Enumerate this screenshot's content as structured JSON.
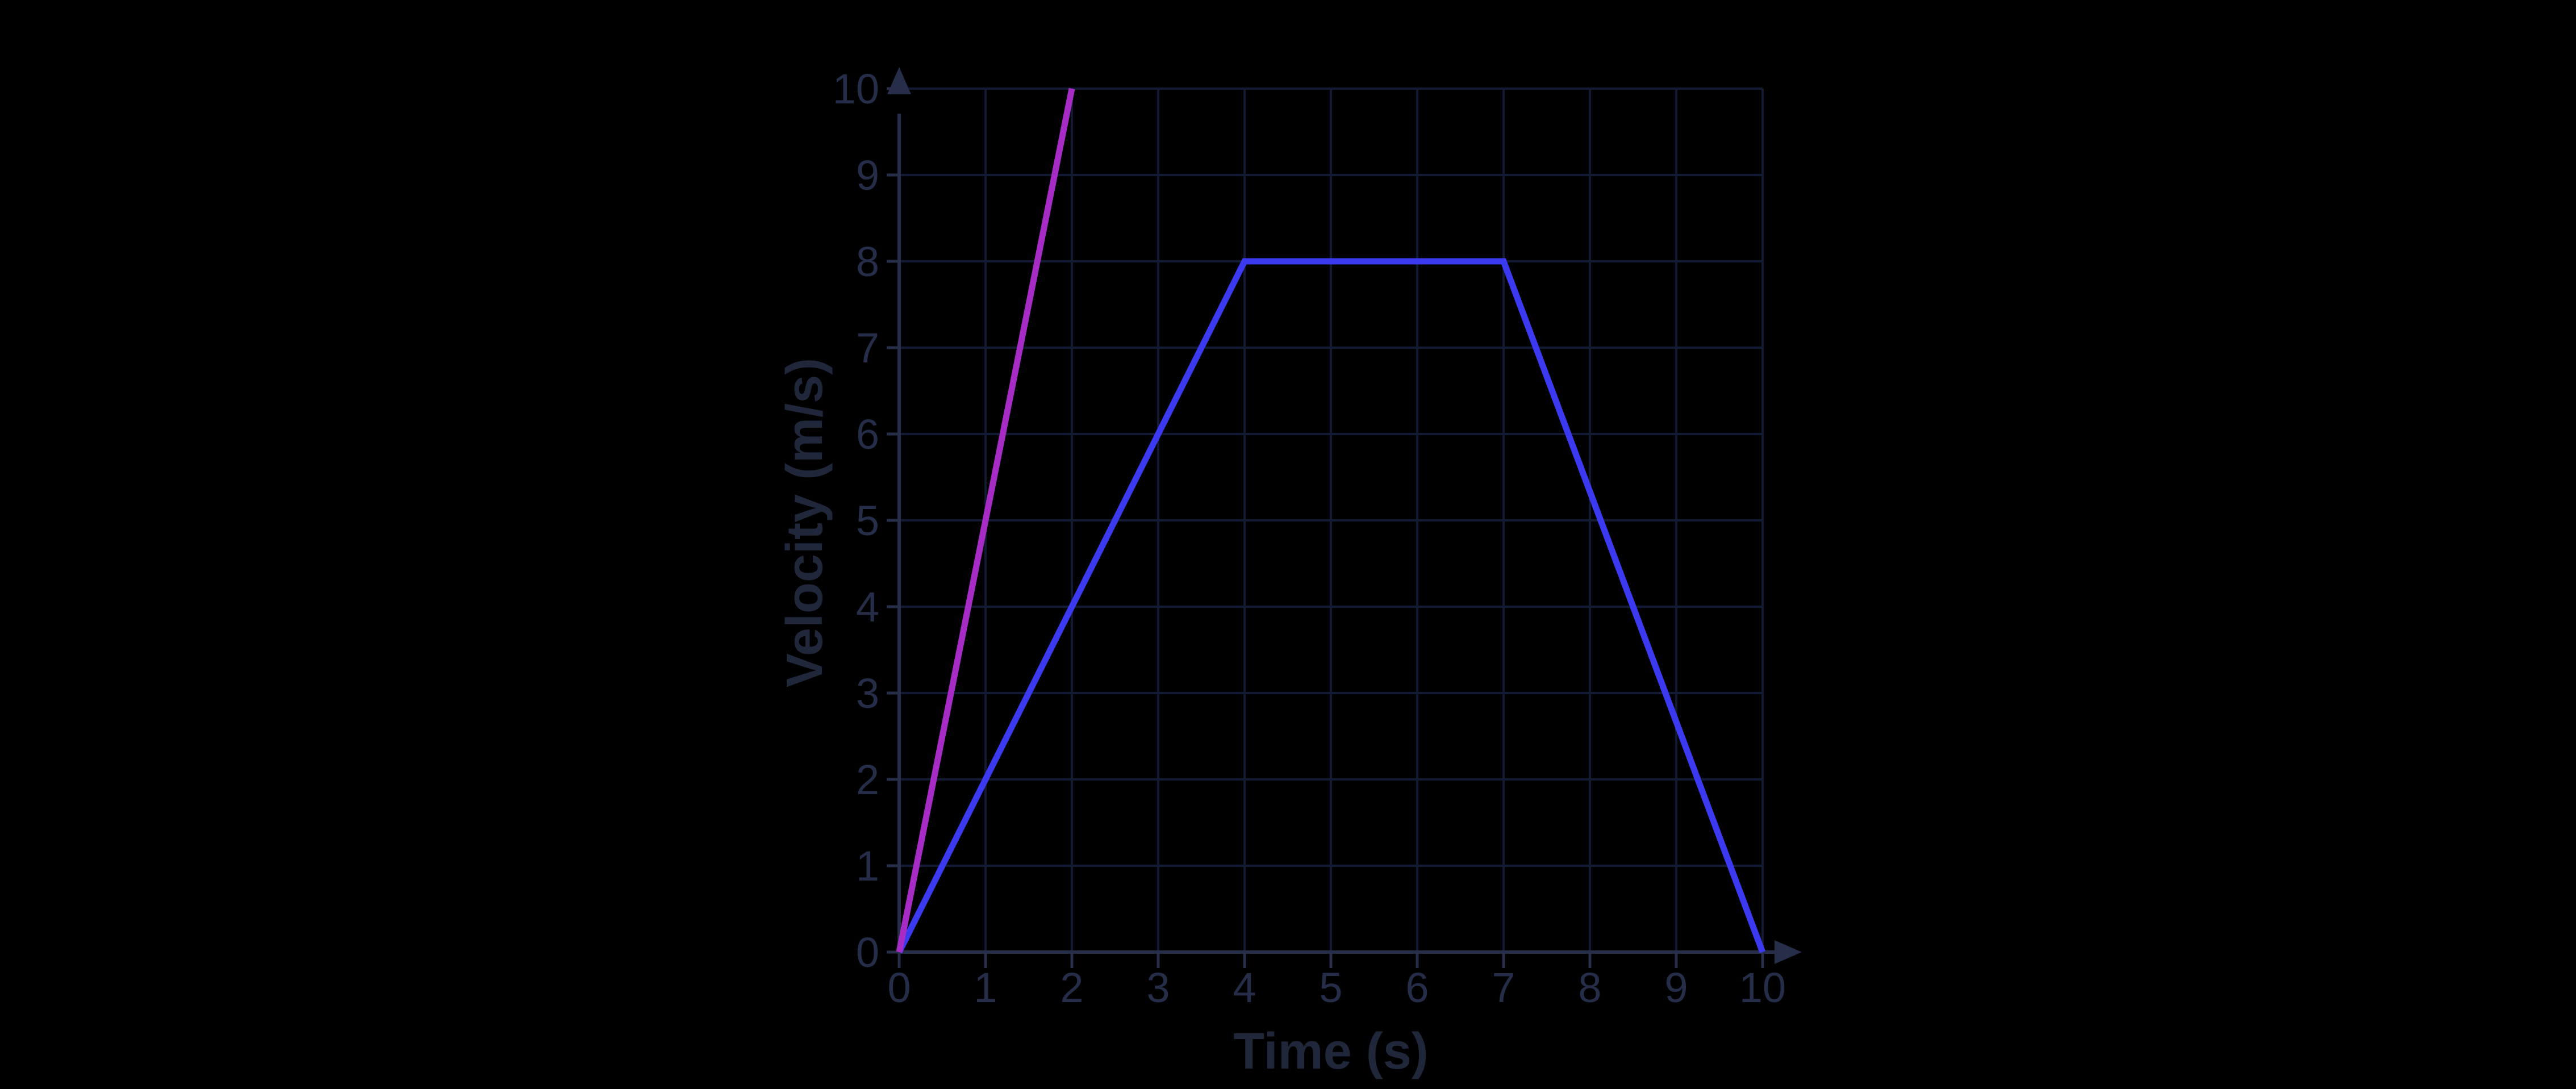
{
  "chart_data": {
    "type": "line",
    "title": "",
    "xlabel": "Time (s)",
    "ylabel": "Velocity (m/s)",
    "xlim": [
      0,
      10
    ],
    "ylim": [
      0,
      10
    ],
    "xticks": [
      0,
      1,
      2,
      3,
      4,
      5,
      6,
      7,
      8,
      9,
      10
    ],
    "yticks": [
      0,
      1,
      2,
      3,
      4,
      5,
      6,
      7,
      8,
      9,
      10
    ],
    "grid": true,
    "legend": false,
    "series": [
      {
        "name": "blue-trapezoid-velocity",
        "color": "#3b3af0",
        "points": [
          [
            0,
            0
          ],
          [
            4,
            8
          ],
          [
            7,
            8
          ],
          [
            10,
            0
          ]
        ]
      },
      {
        "name": "magenta-steep-velocity",
        "color": "#a72cc6",
        "points": [
          [
            0,
            0
          ],
          [
            2,
            10
          ]
        ]
      }
    ],
    "colors": {
      "background": "#000000",
      "grid": "#121a34",
      "axis": "#262e4a",
      "tick_label": "#252d49",
      "axis_title": "#20273b"
    }
  }
}
